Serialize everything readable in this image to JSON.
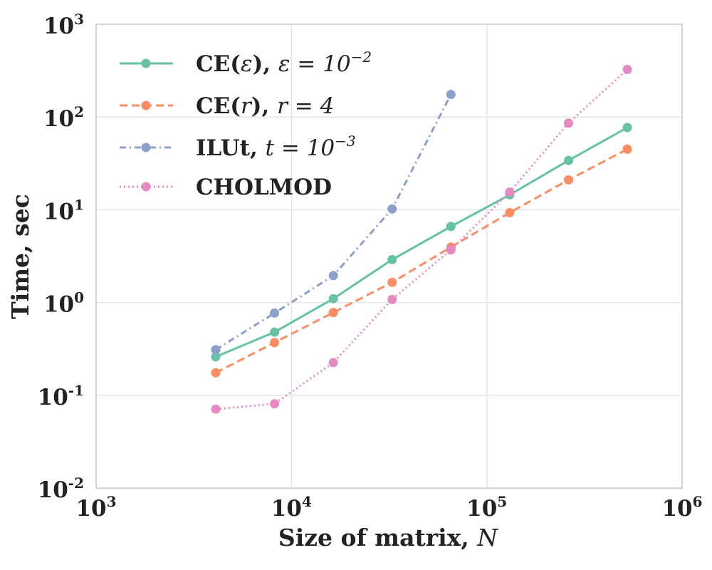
{
  "chart_data": {
    "type": "line",
    "scale": {
      "x": "log",
      "y": "log"
    },
    "xlim": [
      1000,
      1000000
    ],
    "ylim": [
      0.01,
      1000
    ],
    "grid": true,
    "legend_position": "top-left",
    "xlabel": {
      "text": "Size of matrix, ",
      "var": "N"
    },
    "ylabel": "Time, sec",
    "x_ticks": [
      {
        "base": "10",
        "exp": "3",
        "value": 1000
      },
      {
        "base": "10",
        "exp": "4",
        "value": 10000
      },
      {
        "base": "10",
        "exp": "5",
        "value": 100000
      },
      {
        "base": "10",
        "exp": "6",
        "value": 1000000
      }
    ],
    "y_ticks": [
      {
        "base": "10",
        "exp": "-2",
        "value": 0.01
      },
      {
        "base": "10",
        "exp": "-1",
        "value": 0.1
      },
      {
        "base": "10",
        "exp": "0",
        "value": 1
      },
      {
        "base": "10",
        "exp": "1",
        "value": 10
      },
      {
        "base": "10",
        "exp": "2",
        "value": 100
      },
      {
        "base": "10",
        "exp": "3",
        "value": 1000
      }
    ],
    "series": [
      {
        "name": "CE(ε), ε = 10⁻²",
        "legend": {
          "bold": "CE(",
          "var": "ε",
          "close": "), ",
          "expr_var": "ε",
          "expr": " = 10",
          "sup": "−2"
        },
        "color": "#66c2a5",
        "dash": "solid",
        "x": [
          4096,
          8192,
          16384,
          32768,
          65536,
          131072,
          262144,
          524288
        ],
        "y": [
          0.26,
          0.48,
          1.1,
          2.9,
          6.6,
          14.5,
          34,
          77
        ]
      },
      {
        "name": "CE(r), r = 4",
        "legend": {
          "bold": "CE(",
          "var": "r",
          "close": "), ",
          "expr_var": "r",
          "expr": " = 4",
          "sup": ""
        },
        "color": "#fc8d62",
        "dash": "dashed",
        "x": [
          4096,
          8192,
          16384,
          32768,
          65536,
          131072,
          262144,
          524288
        ],
        "y": [
          0.175,
          0.37,
          0.78,
          1.65,
          3.95,
          9.3,
          21,
          45
        ]
      },
      {
        "name": "ILUt, t = 10⁻³",
        "legend": {
          "bold": "ILUt, ",
          "var": "",
          "close": "",
          "expr_var": "t",
          "expr": " = 10",
          "sup": "−3"
        },
        "color": "#8da0cb",
        "dash": "dashdot",
        "x": [
          4096,
          8192,
          16384,
          32768,
          65536
        ],
        "y": [
          0.31,
          0.77,
          1.95,
          10.2,
          175
        ]
      },
      {
        "name": "CHOLMOD",
        "legend": {
          "bold": "CHOLMOD",
          "var": "",
          "close": "",
          "expr_var": "",
          "expr": "",
          "sup": ""
        },
        "color": "#e78ac3",
        "dash": "dotted",
        "x": [
          4096,
          8192,
          16384,
          32768,
          65536,
          131072,
          262144,
          524288
        ],
        "y": [
          0.071,
          0.081,
          0.225,
          1.08,
          3.7,
          15.5,
          86,
          325
        ]
      }
    ]
  }
}
